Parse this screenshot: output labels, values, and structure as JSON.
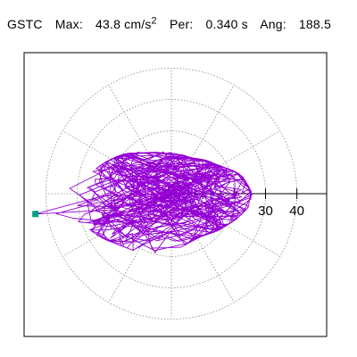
{
  "header": {
    "station": "GSTC",
    "max_label": "Max:",
    "max_value": "43.8 cm/s",
    "max_unit_exponent": "2",
    "period_label": "Per:",
    "period_value": "0.340 s",
    "angle_label": "Ang:",
    "angle_value": "188.5"
  },
  "colors": {
    "trace": "#9400d3",
    "marker": "#00a080",
    "grid": "#888888",
    "axis": "#000000",
    "background": "#ffffff"
  },
  "chart_data": {
    "type": "scatter",
    "subtype": "polar-orbit",
    "title": "GSTC   Max:  43.8 cm/s2  Per:  0.340 s   Ang: 188.5",
    "radial_ticks": [
      10,
      20,
      30,
      40
    ],
    "radial_tick_labels": [
      "30",
      "40"
    ],
    "grid_angles_deg": [
      0,
      30,
      60,
      90,
      120,
      150,
      180,
      210,
      240,
      270,
      300,
      330
    ],
    "r_max": 43.8,
    "max_angle_deg": 188.5,
    "grid": true,
    "marker_value": {
      "r": 43.8,
      "angle_deg": 188.5
    },
    "envelope": [
      {
        "angle_deg": 0,
        "r": 28
      },
      {
        "angle_deg": 15,
        "r": 25
      },
      {
        "angle_deg": 30,
        "r": 19
      },
      {
        "angle_deg": 60,
        "r": 14
      },
      {
        "angle_deg": 90,
        "r": 14
      },
      {
        "angle_deg": 120,
        "r": 16
      },
      {
        "angle_deg": 150,
        "r": 24
      },
      {
        "angle_deg": 170,
        "r": 30
      },
      {
        "angle_deg": 188.5,
        "r": 43.8
      },
      {
        "angle_deg": 200,
        "r": 32
      },
      {
        "angle_deg": 225,
        "r": 25
      },
      {
        "angle_deg": 250,
        "r": 22
      },
      {
        "angle_deg": 270,
        "r": 20
      },
      {
        "angle_deg": 300,
        "r": 17
      },
      {
        "angle_deg": 330,
        "r": 22
      },
      {
        "angle_deg": 350,
        "r": 27
      }
    ]
  }
}
